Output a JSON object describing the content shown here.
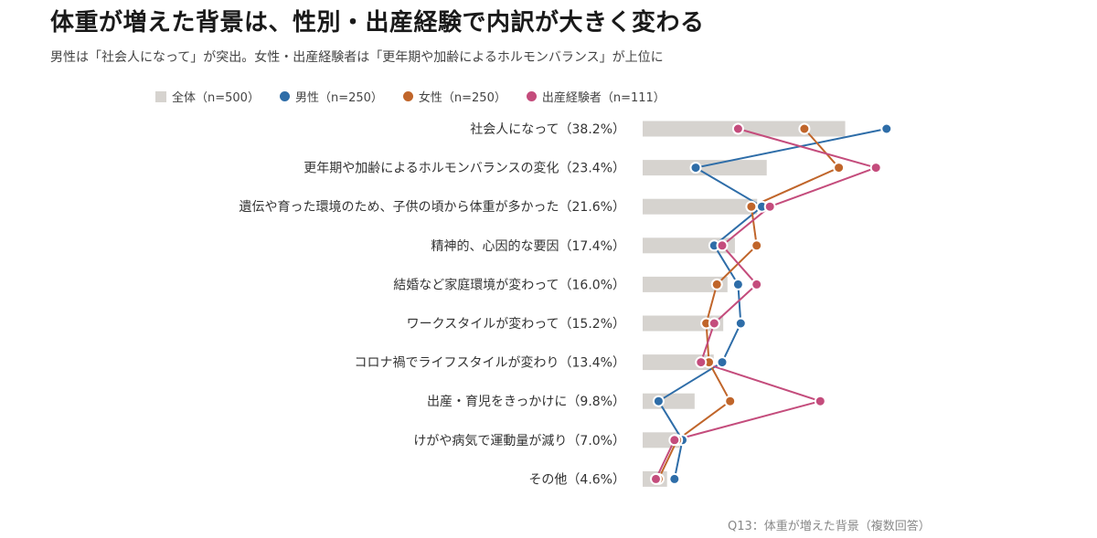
{
  "title": "体重が増えた背景は、性別・出産経験で内訳が大きく変わる",
  "subtitle": "男性は「社会人になって」が突出。女性・出産経験者は「更年期や加齢によるホルモンバランス」が上位に",
  "footnote": "Q13：体重が増えた背景（複数回答）",
  "colors": {
    "total_bar": "#d6d3cf",
    "male": "#2e6da8",
    "female": "#c0652a",
    "childbirth": "#c44c7c"
  },
  "chart_data": {
    "type": "bar",
    "categories": [
      "社会人になって（38.2%）",
      "更年期や加齢によるホルモンバランスの変化（23.4%）",
      "遺伝や育った環境のため、子供の頃から体重が多かった（21.6%）",
      "精神的、心因的な要因（17.4%）",
      "結婚など家庭環境が変わって（16.0%）",
      "ワークスタイルが変わって（15.2%）",
      "コロナ禍でライフスタイルが変わり（13.4%）",
      "出産・育児をきっかけに（9.8%）",
      "けがや病気で運動量が減り（7.0%）",
      "その他（4.6%）"
    ],
    "series": [
      {
        "name": "全体（n=500）",
        "mark": "bar",
        "values": [
          38.2,
          23.4,
          21.6,
          17.4,
          16.0,
          15.2,
          13.4,
          9.8,
          7.0,
          4.6
        ]
      },
      {
        "name": "男性（n=250）",
        "mark": "line",
        "values": [
          46.0,
          10.0,
          22.5,
          13.5,
          18.0,
          18.5,
          15.0,
          3.0,
          7.5,
          6.0
        ]
      },
      {
        "name": "女性（n=250）",
        "mark": "line",
        "values": [
          30.5,
          37.0,
          20.5,
          21.5,
          14.0,
          12.0,
          12.5,
          16.5,
          6.5,
          3.0
        ]
      },
      {
        "name": "出産経験者（n=111）",
        "mark": "line",
        "values": [
          18.0,
          44.0,
          24.0,
          15.0,
          21.5,
          13.5,
          11.0,
          33.5,
          6.0,
          2.5
        ]
      }
    ],
    "xlim": [
      0,
      50
    ],
    "grid": false,
    "legend": "top-left"
  }
}
